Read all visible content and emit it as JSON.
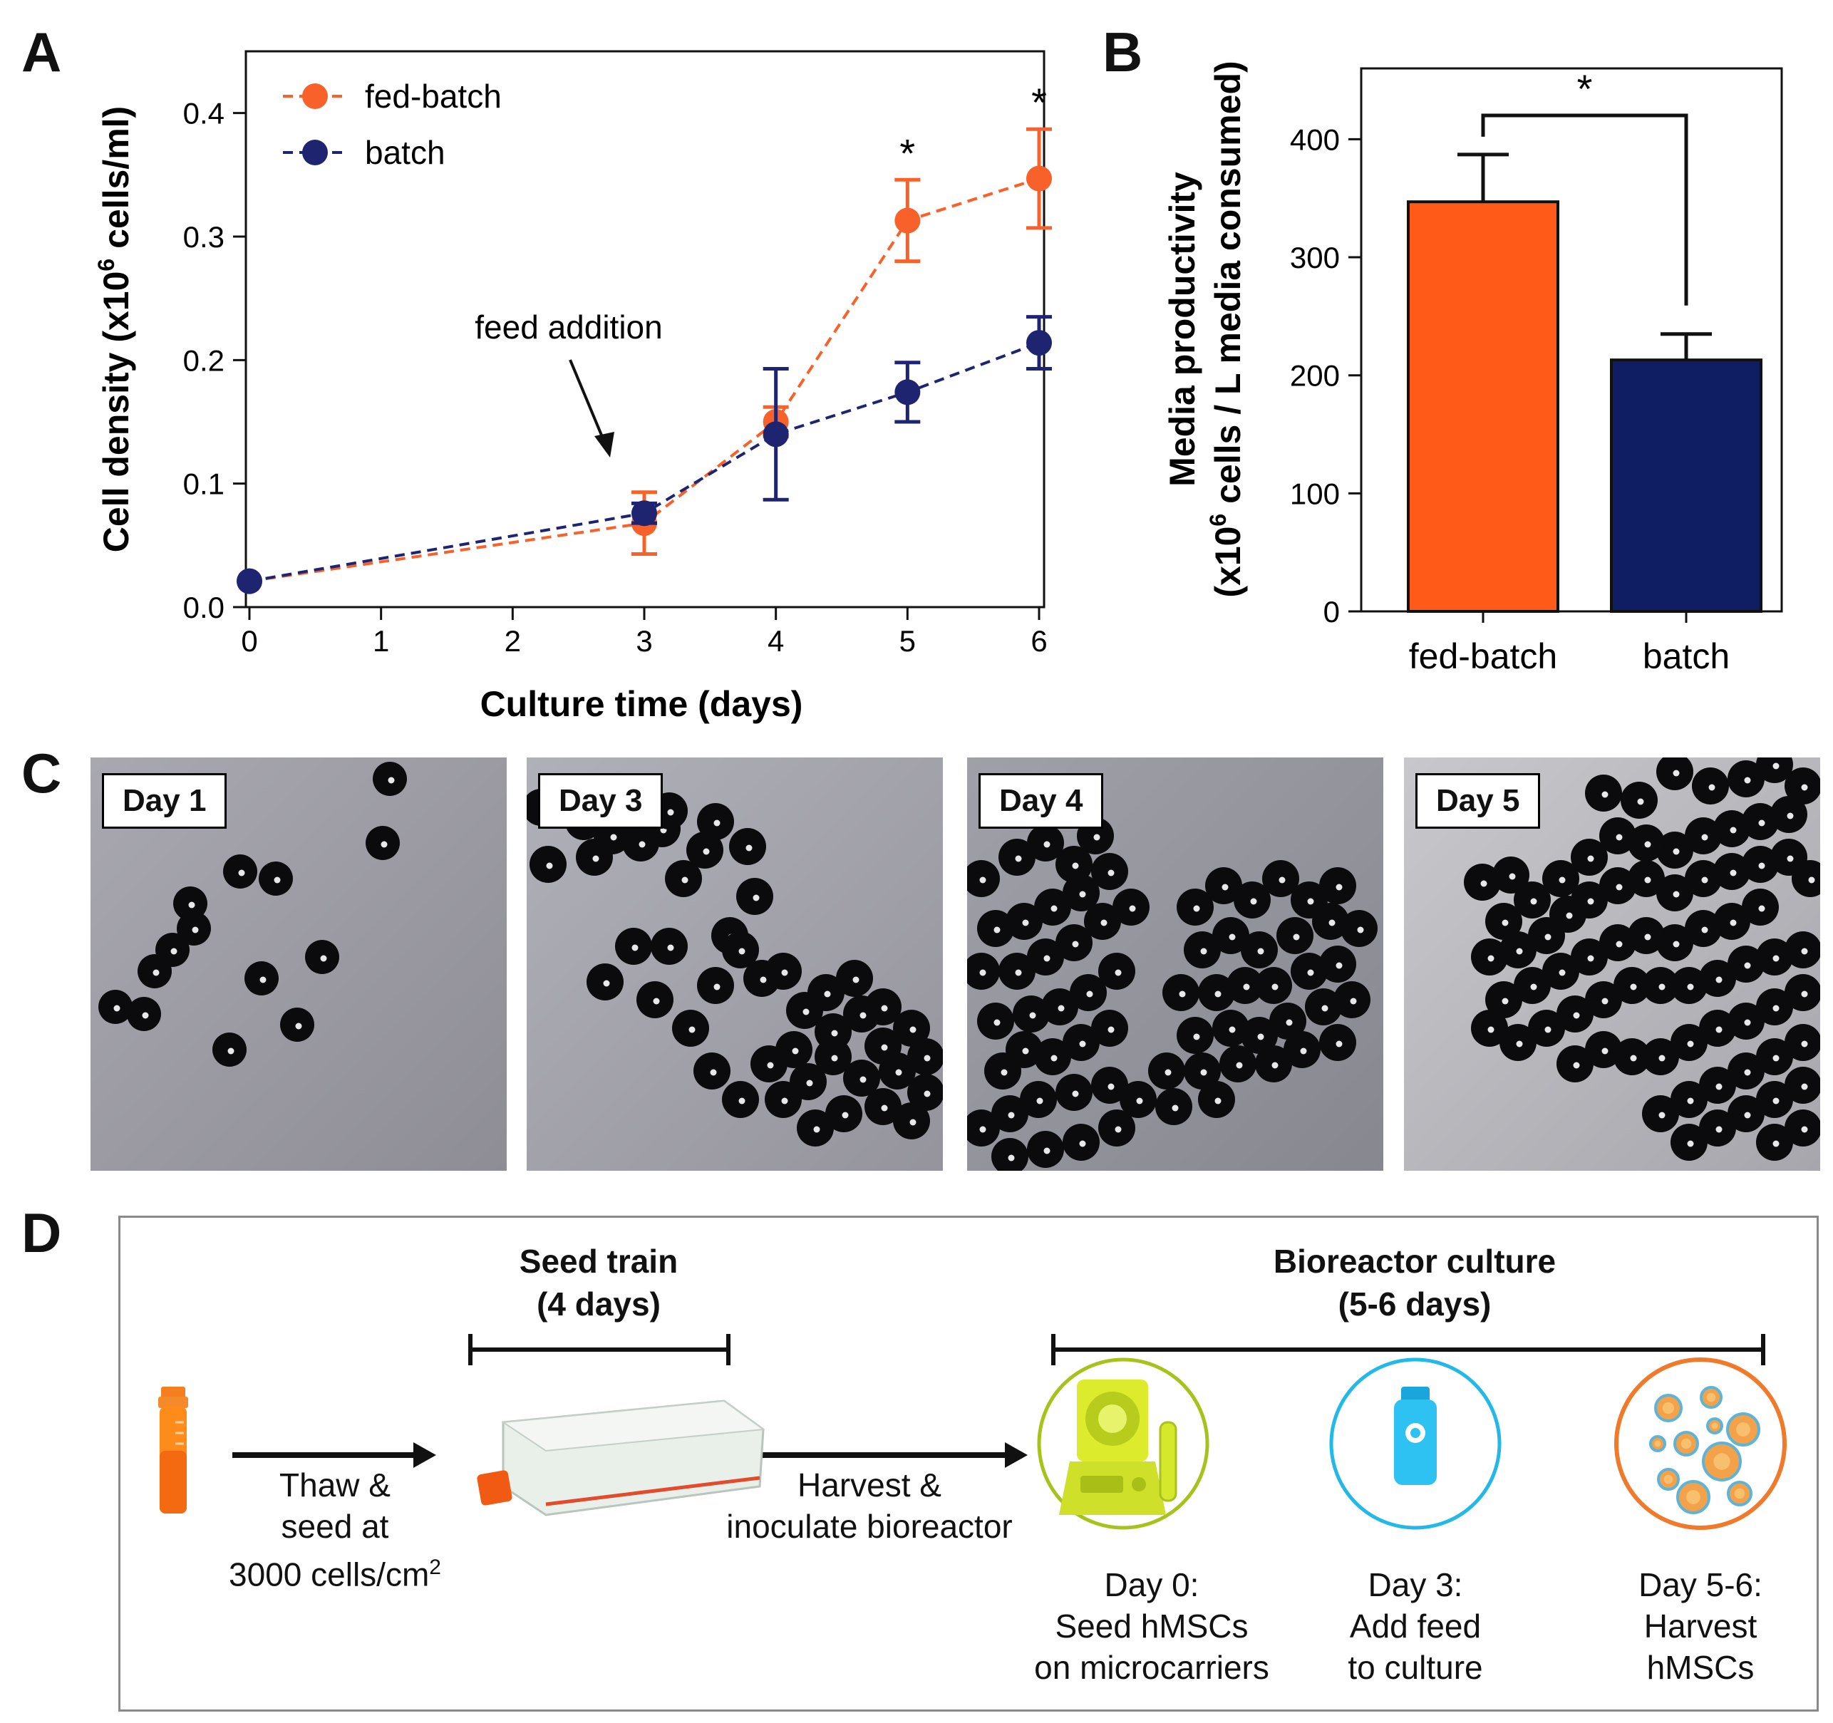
{
  "panels": {
    "a": "A",
    "b": "B",
    "c": "C",
    "d": "D"
  },
  "colors": {
    "fed_batch": "#F9612A",
    "batch": "#1E2470",
    "bar_fed": "#FF5A17",
    "bar_batch": "#0F1E63"
  },
  "chart_data": [
    {
      "type": "line",
      "ylabel_main": "Cell density (x10",
      "ylabel_sup": "6",
      "ylabel_tail": " cells/ml)",
      "xlabel": "Culture time (days)",
      "xlim": [
        0,
        6
      ],
      "ylim": [
        0.0,
        0.45
      ],
      "xticks": [
        0,
        1,
        2,
        3,
        4,
        5,
        6
      ],
      "yticks": [
        0.0,
        0.1,
        0.2,
        0.3,
        0.4
      ],
      "ytick_labels": [
        "0.0",
        "0.1",
        "0.2",
        "0.3",
        "0.4"
      ],
      "legend_position": "top-left",
      "series": [
        {
          "name": "fed-batch",
          "x": [
            0,
            3,
            4,
            5,
            6
          ],
          "y": [
            0.021,
            0.068,
            0.15,
            0.313,
            0.347
          ],
          "err": [
            0.003,
            0.025,
            0.012,
            0.033,
            0.04
          ]
        },
        {
          "name": "batch",
          "x": [
            0,
            3,
            4,
            5,
            6
          ],
          "y": [
            0.021,
            0.076,
            0.14,
            0.174,
            0.214
          ],
          "err": [
            0.003,
            0.008,
            0.053,
            0.024,
            0.021
          ]
        }
      ],
      "annotations": [
        {
          "text": "feed addition",
          "x": 3
        },
        {
          "text": "*",
          "x": 5
        },
        {
          "text": "*",
          "x": 6
        }
      ]
    },
    {
      "type": "bar",
      "ylabel_line1": "Media productivity",
      "ylabel_line2_main": "(x10",
      "ylabel_line2_sup": "6",
      "ylabel_line2_tail": " cells / L media consumed)",
      "categories": [
        "fed-batch",
        "batch"
      ],
      "values": [
        347,
        213
      ],
      "errors": [
        40,
        22
      ],
      "ylim": [
        0,
        460
      ],
      "yticks": [
        0,
        100,
        200,
        300,
        400
      ],
      "significance": "*"
    }
  ],
  "micrographs": [
    {
      "label": "Day 1"
    },
    {
      "label": "Day 3"
    },
    {
      "label": "Day 4"
    },
    {
      "label": "Day 5"
    }
  ],
  "workflow": {
    "seed_train_title": "Seed train",
    "seed_train_duration": "(4 days)",
    "bioreactor_title": "Bioreactor culture",
    "bioreactor_duration": "(5-6 days)",
    "step1": {
      "line1": "Thaw &",
      "line2": "seed at",
      "line3": "3000 cells/cm",
      "sup": "2"
    },
    "step2": {
      "line1": "Harvest &",
      "line2": "inoculate bioreactor"
    },
    "day0": {
      "line1": "Day 0:",
      "line2": "Seed hMSCs",
      "line3": "on microcarriers"
    },
    "day3": {
      "line1": "Day 3:",
      "line2": "Add feed",
      "line3": "to culture"
    },
    "day56": {
      "line1": "Day 5-6:",
      "line2": "Harvest",
      "line3": "hMSCs"
    }
  }
}
